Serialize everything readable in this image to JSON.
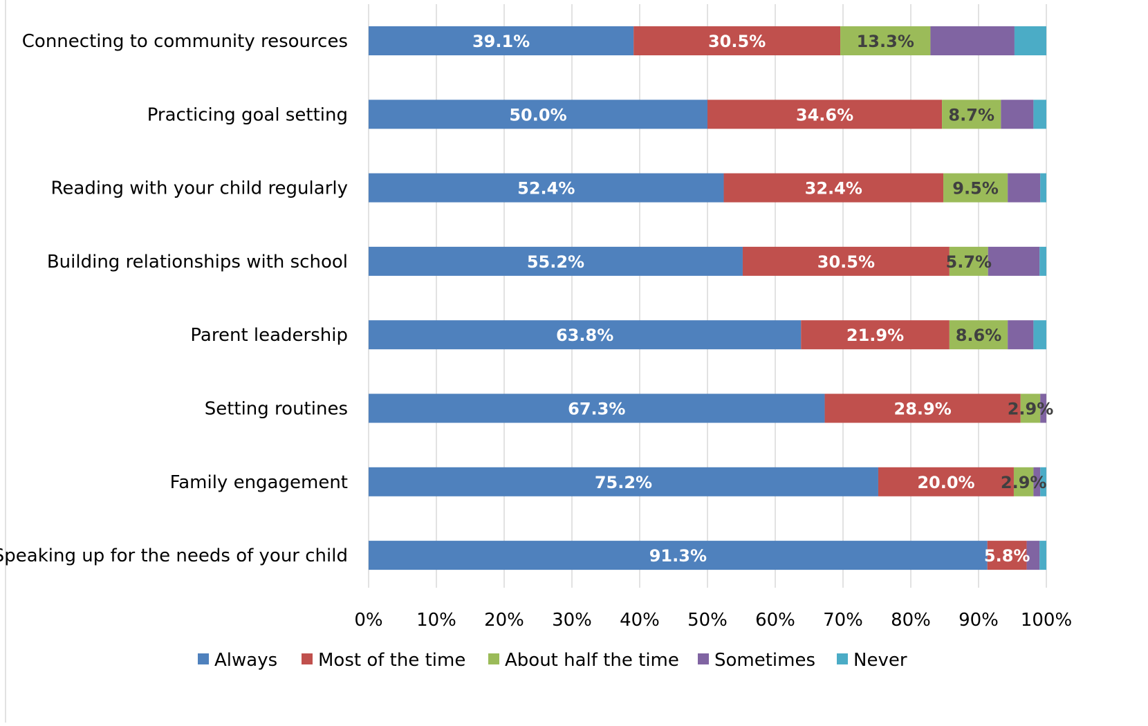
{
  "chart_data": {
    "type": "bar",
    "orientation": "horizontal",
    "stacked": "percent",
    "title": "",
    "xlabel": "",
    "ylabel": "",
    "xlim": [
      0,
      100
    ],
    "x_ticks": [
      "0%",
      "10%",
      "20%",
      "30%",
      "40%",
      "50%",
      "60%",
      "70%",
      "80%",
      "90%",
      "100%"
    ],
    "grid": "vertical",
    "legend_position": "bottom",
    "categories": [
      "Connecting to community resources",
      "Practicing goal setting",
      "Reading with your child regularly",
      "Building relationships with school",
      "Parent leadership",
      "Setting routines",
      "Family engagement",
      "Speaking up for the needs of your child"
    ],
    "series": [
      {
        "name": "Always",
        "color": "#4F81BD",
        "values": [
          39.1,
          50.0,
          52.4,
          55.2,
          63.8,
          67.3,
          75.2,
          91.3
        ],
        "labels": [
          "39.1%",
          "50.0%",
          "52.4%",
          "55.2%",
          "63.8%",
          "67.3%",
          "75.2%",
          "91.3%"
        ]
      },
      {
        "name": "Most of the time",
        "color": "#C0504D",
        "values": [
          30.5,
          34.6,
          32.4,
          30.5,
          21.9,
          28.9,
          20.0,
          5.8
        ],
        "labels": [
          "30.5%",
          "34.6%",
          "32.4%",
          "30.5%",
          "21.9%",
          "28.9%",
          "20.0%",
          "5.8%"
        ]
      },
      {
        "name": "About half the time",
        "color": "#9BBB59",
        "values": [
          13.3,
          8.7,
          9.5,
          5.7,
          8.6,
          2.9,
          2.9,
          0
        ],
        "labels": [
          "13.3%",
          "8.7%",
          "9.5%",
          "5.7%",
          "8.6%",
          "2.9%",
          "2.9%",
          ""
        ]
      },
      {
        "name": "Sometimes",
        "color": "#8064A2",
        "values": [
          12.4,
          4.8,
          4.8,
          7.6,
          3.8,
          1.0,
          1.0,
          1.9
        ],
        "labels": [
          "",
          "",
          "",
          "",
          "",
          "",
          "",
          ""
        ]
      },
      {
        "name": "Never",
        "color": "#4BACC6",
        "values": [
          4.8,
          1.9,
          1.0,
          1.0,
          1.9,
          0,
          1.0,
          1.0
        ],
        "labels": [
          "",
          "",
          "",
          "",
          "",
          "",
          "",
          ""
        ]
      }
    ]
  }
}
